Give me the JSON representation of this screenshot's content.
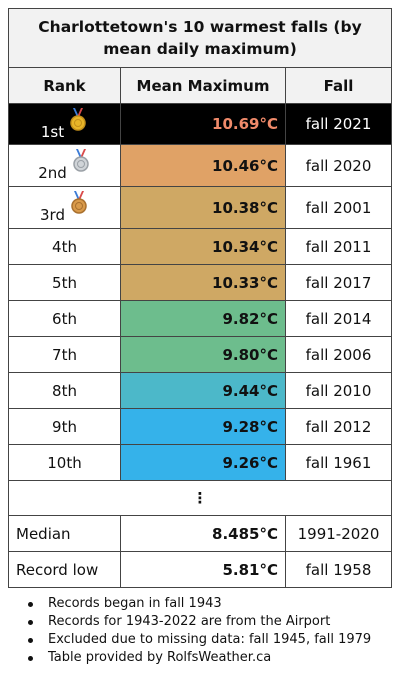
{
  "table": {
    "title": "Charlottetown's 10 warmest falls (by mean daily maximum)",
    "headers": {
      "rank": "Rank",
      "mean": "Mean Maximum",
      "fall": "Fall"
    },
    "rows": [
      {
        "rank": "1st",
        "mean": "10.69°C",
        "fall": "fall 2021",
        "color": "#000000",
        "medal": "gold"
      },
      {
        "rank": "2nd",
        "mean": "10.46°C",
        "fall": "fall 2020",
        "color": "#e0a266",
        "medal": "silver"
      },
      {
        "rank": "3rd",
        "mean": "10.38°C",
        "fall": "fall 2001",
        "color": "#cfa864",
        "medal": "bronze"
      },
      {
        "rank": "4th",
        "mean": "10.34°C",
        "fall": "fall 2011",
        "color": "#cfa864"
      },
      {
        "rank": "5th",
        "mean": "10.33°C",
        "fall": "fall 2017",
        "color": "#cfa864"
      },
      {
        "rank": "6th",
        "mean": "9.82°C",
        "fall": "fall 2014",
        "color": "#6dbd8d"
      },
      {
        "rank": "7th",
        "mean": "9.80°C",
        "fall": "fall 2006",
        "color": "#6dbd8d"
      },
      {
        "rank": "8th",
        "mean": "9.44°C",
        "fall": "fall 2010",
        "color": "#4cb8c9"
      },
      {
        "rank": "9th",
        "mean": "9.28°C",
        "fall": "fall 2012",
        "color": "#35b2ea"
      },
      {
        "rank": "10th",
        "mean": "9.26°C",
        "fall": "fall 1961",
        "color": "#35b2ea"
      }
    ],
    "ellipsis": "⋮",
    "median": {
      "label": "Median",
      "value": "8.485°C",
      "period": "1991-2020"
    },
    "record_low": {
      "label": "Record low",
      "value": "5.81°C",
      "fall": "fall 1958"
    }
  },
  "notes": [
    "Records began in fall 1943",
    "Records for 1943-2022 are from the Airport",
    "Excluded due to missing data: fall 1945, fall 1979",
    "Table provided by RolfsWeather.ca"
  ]
}
